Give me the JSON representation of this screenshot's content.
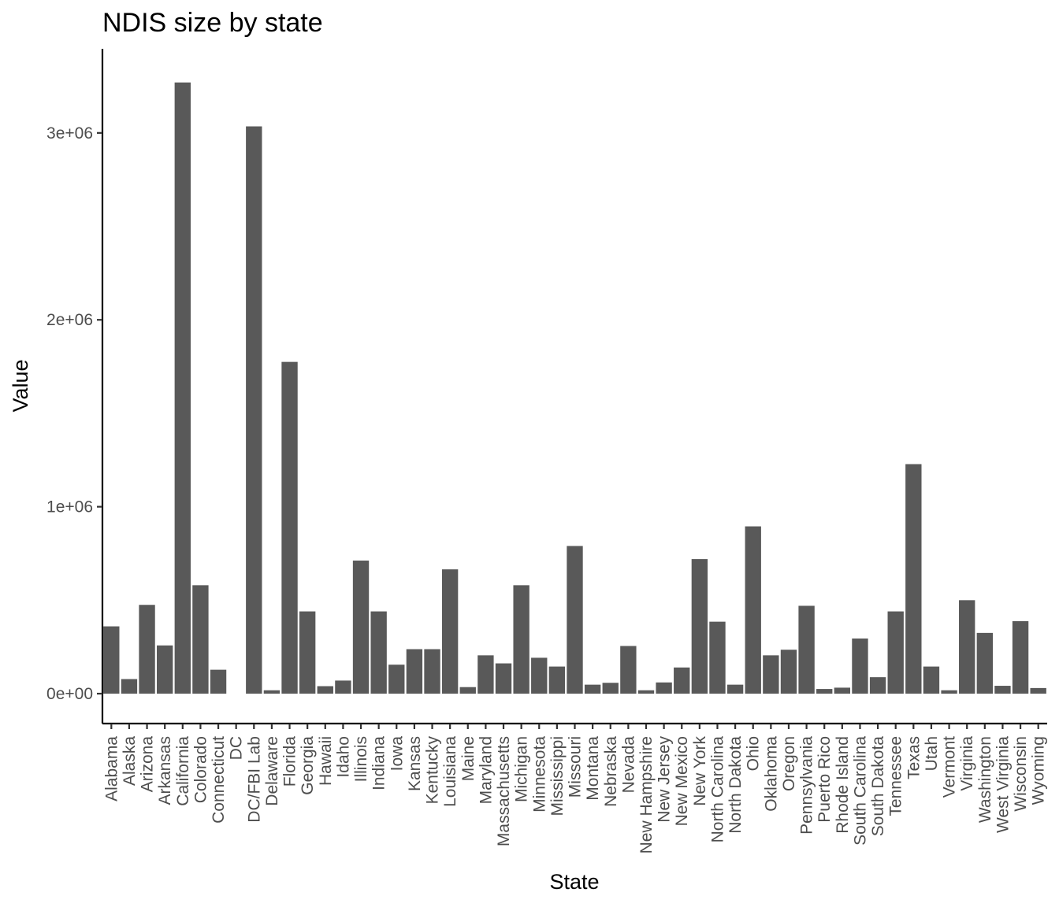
{
  "chart_data": {
    "type": "bar",
    "title": "NDIS size by state",
    "xlabel": "State",
    "ylabel": "Value",
    "ylim": [
      -160000,
      3450000
    ],
    "yticks": [
      0,
      1000000,
      2000000,
      3000000
    ],
    "ytick_labels": [
      "0e+00",
      "1e+06",
      "2e+06",
      "3e+06"
    ],
    "bar_color": "#595959",
    "categories": [
      "Alabama",
      "Alaska",
      "Arizona",
      "Arkansas",
      "California",
      "Colorado",
      "Connecticut",
      "DC",
      "DC/FBI Lab",
      "Delaware",
      "Florida",
      "Georgia",
      "Hawaii",
      "Idaho",
      "Illinois",
      "Indiana",
      "Iowa",
      "Kansas",
      "Kentucky",
      "Louisiana",
      "Maine",
      "Maryland",
      "Massachusetts",
      "Michigan",
      "Minnesota",
      "Mississippi",
      "Missouri",
      "Montana",
      "Nebraska",
      "Nevada",
      "New Hampshire",
      "New Jersey",
      "New Mexico",
      "New York",
      "North Carolina",
      "North Dakota",
      "Ohio",
      "Oklahoma",
      "Oregon",
      "Pennsylvania",
      "Puerto Rico",
      "Rhode Island",
      "South Carolina",
      "South Dakota",
      "Tennessee",
      "Texas",
      "Utah",
      "Vermont",
      "Virginia",
      "Washington",
      "West Virginia",
      "Wisconsin",
      "Wyoming"
    ],
    "values": [
      360000,
      78000,
      475000,
      258000,
      3270000,
      580000,
      128000,
      0,
      3035000,
      18000,
      1775000,
      440000,
      40000,
      70000,
      712000,
      440000,
      155000,
      238000,
      238000,
      665000,
      35000,
      205000,
      162000,
      580000,
      192000,
      145000,
      790000,
      48000,
      58000,
      255000,
      18000,
      60000,
      140000,
      720000,
      385000,
      48000,
      895000,
      205000,
      235000,
      470000,
      25000,
      32000,
      295000,
      88000,
      440000,
      1228000,
      145000,
      18000,
      500000,
      325000,
      42000,
      388000,
      30000
    ]
  }
}
